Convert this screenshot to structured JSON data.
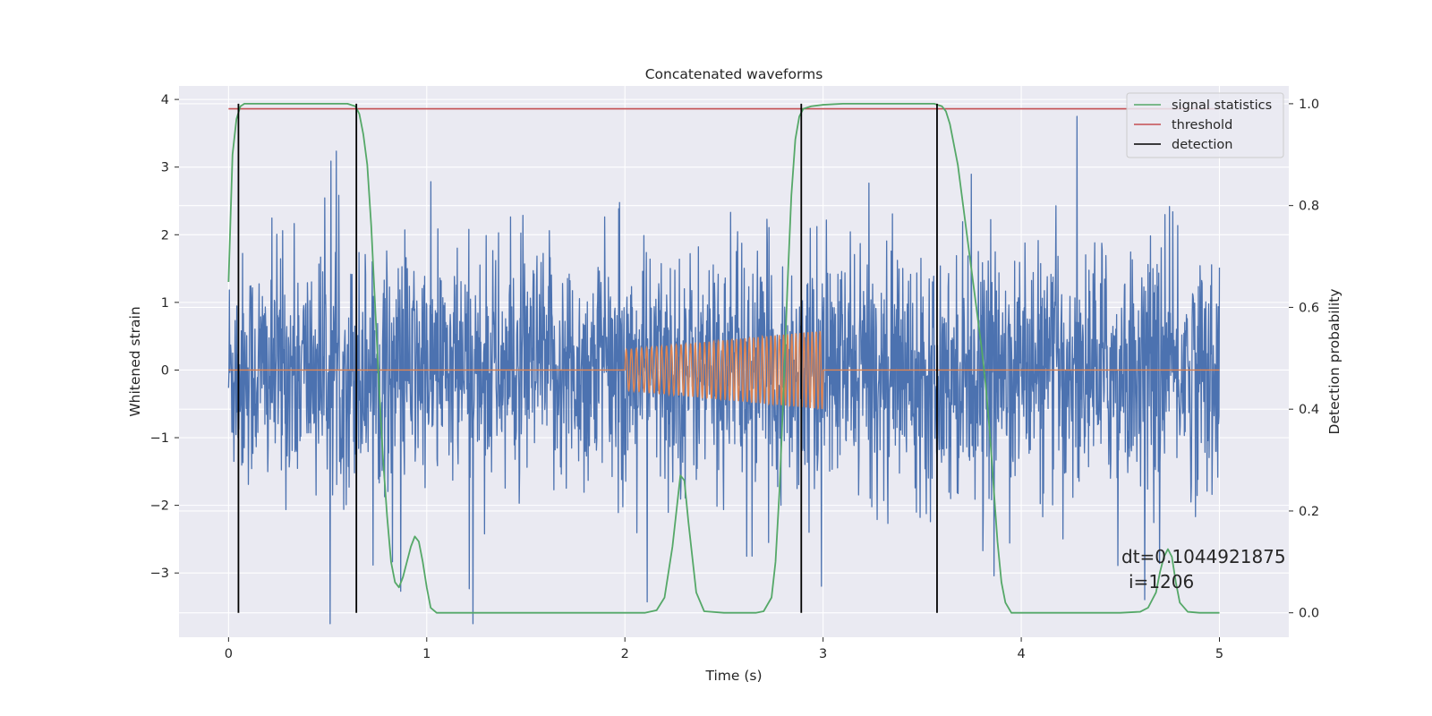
{
  "chart_data": {
    "type": "line",
    "title": "Concatenated waveforms",
    "xlabel": "Time (s)",
    "ylabel": "Whitened strain",
    "ylabel_right": "Detection probability",
    "xlim": [
      -0.25,
      5.35
    ],
    "ylim": [
      -3.95,
      4.2
    ],
    "ylim_right": [
      -0.048,
      1.035
    ],
    "x_ticks": [
      0,
      1,
      2,
      3,
      4,
      5
    ],
    "y_ticks": [
      -3,
      -2,
      -1,
      0,
      1,
      2,
      3,
      4
    ],
    "y_ticks_right": [
      0.0,
      0.2,
      0.4,
      0.6,
      0.8,
      1.0
    ],
    "y_tick_labels": [
      "−3",
      "−2",
      "−1",
      "0",
      "1",
      "2",
      "3",
      "4"
    ],
    "y_tick_labels_right": [
      "0.0",
      "0.2",
      "0.4",
      "0.6",
      "0.8",
      "1.0"
    ],
    "x_tick_labels": [
      "0",
      "1",
      "2",
      "3",
      "4",
      "5"
    ],
    "grid": true,
    "legend_position": "top-right",
    "annotation": [
      "dt=0.1044921875",
      "i=1206"
    ],
    "series": [
      {
        "name": "",
        "axis": "left",
        "color": "#4c72b0",
        "kind": "noise",
        "x_range": [
          0,
          5
        ],
        "typical_amplitude": 0.85,
        "peak_amplitude": 3.75
      },
      {
        "name": "",
        "axis": "left",
        "color": "#dd8452",
        "kind": "chirp",
        "x": [
          0,
          2,
          2,
          3,
          3,
          5
        ],
        "envelope": [
          0,
          0,
          0.3,
          0.58,
          0,
          0
        ]
      },
      {
        "name": "signal statistics",
        "axis": "right",
        "color": "#55a868",
        "x": [
          0.0,
          0.02,
          0.04,
          0.06,
          0.08,
          0.1,
          0.2,
          0.4,
          0.6,
          0.64,
          0.66,
          0.68,
          0.7,
          0.72,
          0.74,
          0.76,
          0.78,
          0.8,
          0.82,
          0.84,
          0.86,
          0.88,
          0.9,
          0.92,
          0.94,
          0.96,
          0.98,
          1.0,
          1.02,
          1.05,
          1.1,
          1.5,
          2.0,
          2.1,
          2.16,
          2.2,
          2.24,
          2.26,
          2.28,
          2.3,
          2.32,
          2.36,
          2.4,
          2.5,
          2.6,
          2.66,
          2.7,
          2.74,
          2.76,
          2.78,
          2.8,
          2.82,
          2.84,
          2.86,
          2.88,
          2.9,
          2.94,
          3.0,
          3.1,
          3.3,
          3.5,
          3.56,
          3.6,
          3.62,
          3.64,
          3.66,
          3.68,
          3.7,
          3.72,
          3.74,
          3.76,
          3.78,
          3.8,
          3.82,
          3.84,
          3.86,
          3.88,
          3.9,
          3.92,
          3.95,
          4.0,
          4.5,
          4.6,
          4.64,
          4.68,
          4.7,
          4.72,
          4.74,
          4.76,
          4.78,
          4.8,
          4.84,
          4.9,
          5.0
        ],
        "values": [
          0.65,
          0.9,
          0.97,
          0.995,
          1.0,
          1.0,
          1.0,
          1.0,
          1.0,
          0.995,
          0.98,
          0.94,
          0.88,
          0.76,
          0.6,
          0.44,
          0.3,
          0.19,
          0.1,
          0.06,
          0.05,
          0.07,
          0.1,
          0.13,
          0.15,
          0.14,
          0.1,
          0.05,
          0.01,
          0.0,
          0.0,
          0.0,
          0.0,
          0.0,
          0.005,
          0.03,
          0.13,
          0.2,
          0.27,
          0.26,
          0.18,
          0.04,
          0.003,
          0.0,
          0.0,
          0.0,
          0.003,
          0.03,
          0.1,
          0.24,
          0.43,
          0.64,
          0.82,
          0.93,
          0.975,
          0.99,
          0.995,
          0.998,
          1.0,
          1.0,
          1.0,
          1.0,
          0.995,
          0.985,
          0.96,
          0.92,
          0.88,
          0.82,
          0.76,
          0.7,
          0.64,
          0.58,
          0.52,
          0.45,
          0.36,
          0.25,
          0.14,
          0.06,
          0.02,
          0.0,
          0.0,
          0.0,
          0.002,
          0.01,
          0.04,
          0.08,
          0.11,
          0.125,
          0.11,
          0.06,
          0.02,
          0.002,
          0.0,
          0.0
        ]
      },
      {
        "name": "threshold",
        "axis": "right",
        "color": "#c44e52",
        "x": [
          0,
          5
        ],
        "values": [
          0.99,
          0.99
        ]
      },
      {
        "name": "detection",
        "axis": "right",
        "color": "#000000",
        "kind": "vlines",
        "x": [
          0.05,
          0.645,
          2.89,
          3.575
        ],
        "range": [
          0,
          1
        ]
      }
    ]
  }
}
